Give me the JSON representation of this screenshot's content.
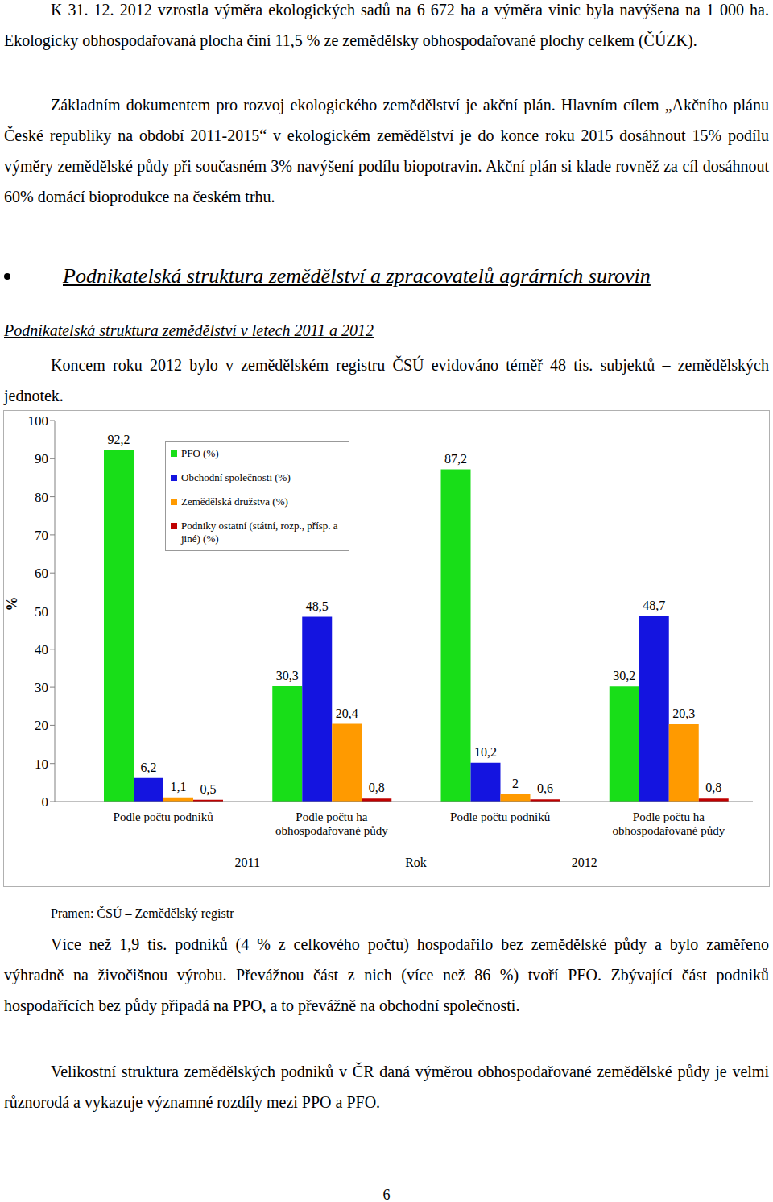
{
  "document": {
    "paragraphs_before": [
      "K 31. 12. 2012 vzrostla výměra ekologických sadů na 6 672 ha a výměra vinic byla navýšena na 1 000 ha. Ekologicky obhospodařovaná plocha činí 11,5 % ze zemědělsky obhospodařované plochy celkem (ČÚZK).",
      "Základním dokumentem pro rozvoj ekologického zemědělství je akční plán. Hlavním cílem „Akčního plánu České republiky na období 2011-2015“ v ekologickém zemědělství je do konce roku 2015 dosáhnout 15% podílu výměry zemědělské půdy při současném 3% navýšení podílu biopotravin. Akční plán si klade rovněž za cíl dosáhnout 60% domácí bioprodukce na českém trhu."
    ],
    "heading": "Podnikatelská struktura zemědělství a zpracovatelů agrárních surovin",
    "subheading": "Podnikatelská struktura zemědělství v letech 2011 a 2012",
    "paragraph_intro": "Koncem roku 2012 bylo v zemědělském registru ČSÚ evidováno téměř 48 tis. subjektů – zemědělských jednotek.",
    "source": "Pramen: ČSÚ – Zemědělský registr",
    "paragraphs_after": [
      "Více než 1,9 tis. podniků (4 % z celkového počtu) hospodařilo bez zemědělské půdy a bylo zaměřeno výhradně na živočišnou výrobu. Převážnou část z nich (více než 86 %) tvoří PFO. Zbývající část podniků hospodařících bez půdy připadá na PPO, a to převážně na obchodní společnosti.",
      "Velikostní struktura zemědělských podniků v ČR daná výměrou obhospodařované zemědělské půdy je velmi různorodá a vykazuje významné rozdíly mezi PPO a PFO."
    ],
    "page_number": "6"
  },
  "chart_data": {
    "type": "bar",
    "categories": [
      "Podle počtu podniků",
      "Podle počtu ha obhospodařované půdy",
      "Podle počtu podniků",
      "Podle počtu ha obhospodařované půdy"
    ],
    "group_labels": [
      "2011",
      "2012"
    ],
    "x_label": "Rok",
    "y_label": "%",
    "ylim": [
      0,
      100
    ],
    "yticks": [
      0,
      10,
      20,
      30,
      40,
      50,
      60,
      70,
      80,
      90,
      100
    ],
    "grid": false,
    "legend": "top",
    "data_labels": true,
    "series": [
      {
        "name": "PFO (%)",
        "color": "#18de18",
        "values": [
          92.2,
          30.3,
          87.2,
          30.2
        ],
        "value_labels": [
          "92,2",
          "30,3",
          "87,2",
          "30,2"
        ]
      },
      {
        "name": "Obchodní společnosti (%)",
        "color": "#1414e0",
        "values": [
          6.2,
          48.5,
          10.2,
          48.7
        ],
        "value_labels": [
          "6,2",
          "48,5",
          "10,2",
          "48,7"
        ]
      },
      {
        "name": "Zemědělská družstva (%)",
        "color": "#ff9a00",
        "values": [
          1.1,
          20.4,
          2,
          20.3
        ],
        "value_labels": [
          "1,1",
          "20,4",
          "2",
          "20,3"
        ]
      },
      {
        "name": "Podniky ostatní (státní, rozp., přísp. a jiné) (%)",
        "color": "#c00000",
        "values": [
          0.5,
          0.8,
          0.6,
          0.8
        ],
        "value_labels": [
          "0,5",
          "0,8",
          "0,6",
          "0,8"
        ]
      }
    ]
  }
}
